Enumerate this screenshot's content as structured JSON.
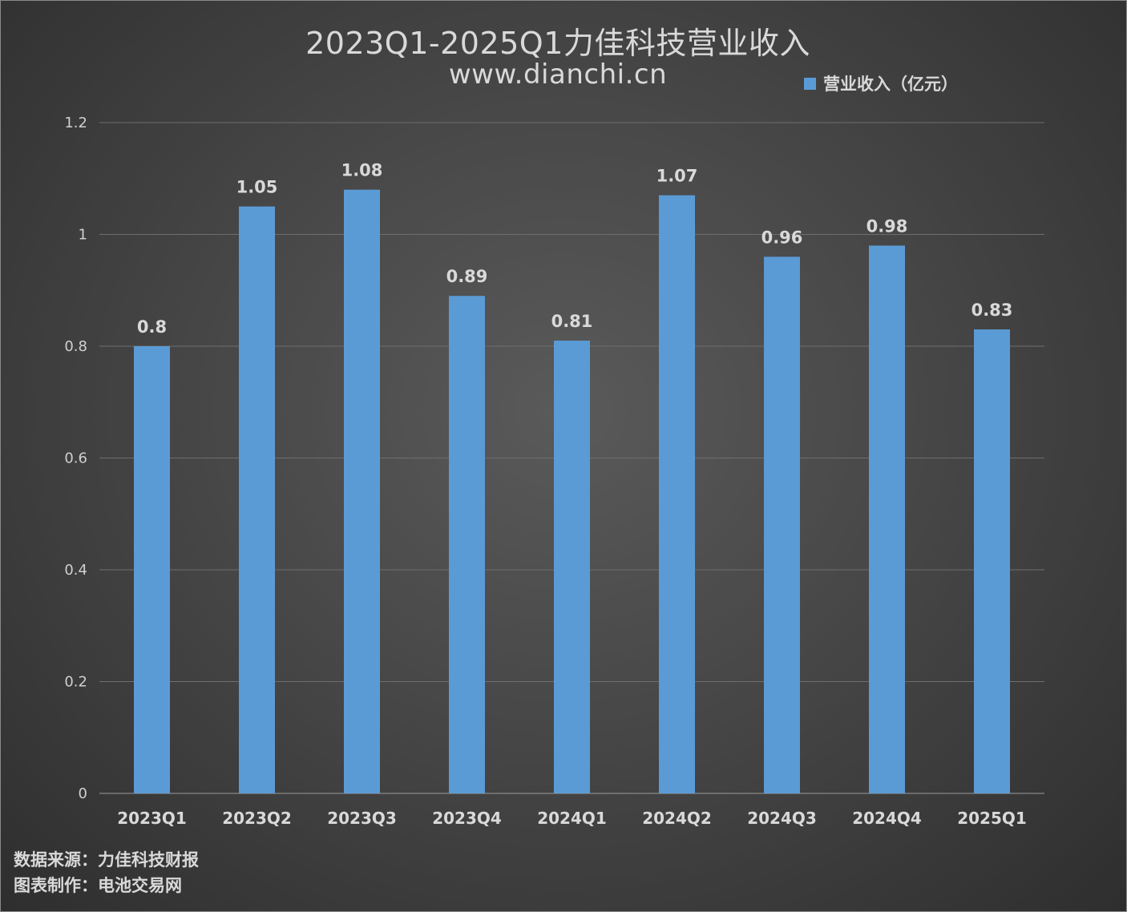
{
  "chart_data": {
    "type": "bar",
    "title": "2023Q1-2025Q1力佳科技营业收入",
    "subtitle": "www.dianchi.cn",
    "categories": [
      "2023Q1",
      "2023Q2",
      "2023Q3",
      "2023Q4",
      "2024Q1",
      "2024Q2",
      "2024Q3",
      "2024Q4",
      "2025Q1"
    ],
    "series": [
      {
        "name": "营业收入（亿元）",
        "values": [
          0.8,
          1.05,
          1.08,
          0.89,
          0.81,
          1.07,
          0.96,
          0.98,
          0.83
        ]
      }
    ],
    "data_labels": [
      "0.8",
      "1.05",
      "1.08",
      "0.89",
      "0.81",
      "1.07",
      "0.96",
      "0.98",
      "0.83"
    ],
    "ylim": [
      0,
      1.2
    ],
    "yticks": [
      0,
      0.2,
      0.4,
      0.6,
      0.8,
      1,
      1.2
    ],
    "ytick_labels": [
      "0",
      "0.2",
      "0.4",
      "0.6",
      "0.8",
      "1",
      "1.2"
    ],
    "grid": true,
    "legend_position": "top-right",
    "bar_color": "#5b9bd5"
  },
  "footer": {
    "source": "数据来源：力佳科技财报",
    "maker": "图表制作：电池交易网"
  }
}
